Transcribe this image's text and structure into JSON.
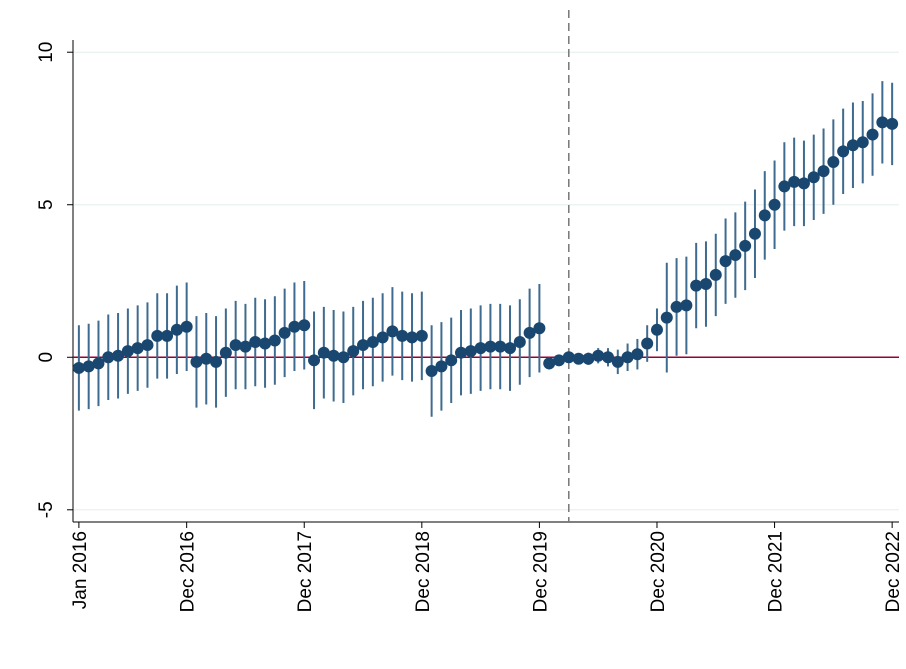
{
  "chart_data": {
    "type": "errorbar",
    "categories": [
      "Jan 2016",
      null,
      null,
      null,
      null,
      null,
      null,
      null,
      null,
      null,
      null,
      "Dec 2016",
      null,
      null,
      null,
      null,
      null,
      null,
      null,
      null,
      null,
      null,
      null,
      "Dec 2017",
      null,
      null,
      null,
      null,
      null,
      null,
      null,
      null,
      null,
      null,
      null,
      "Dec 2018",
      null,
      null,
      null,
      null,
      null,
      null,
      null,
      null,
      null,
      null,
      null,
      "Dec 2019",
      null,
      null,
      null,
      null,
      null,
      null,
      null,
      null,
      null,
      null,
      null,
      "Dec 2020",
      null,
      null,
      null,
      null,
      null,
      null,
      null,
      null,
      null,
      null,
      null,
      "Dec 2021",
      null,
      null,
      null,
      null,
      null,
      null,
      null,
      null,
      null,
      null,
      null,
      "Dec 2022"
    ],
    "series": [
      {
        "color": "#1a476f",
        "bar_color": "#3e6b8f",
        "values": [
          -0.35,
          -0.3,
          -0.2,
          0,
          0.05,
          0.2,
          0.3,
          0.4,
          0.7,
          0.7,
          0.9,
          1.0,
          -0.15,
          -0.05,
          -0.15,
          0.15,
          0.4,
          0.35,
          0.5,
          0.45,
          0.55,
          0.8,
          1.0,
          1.05,
          -0.1,
          0.15,
          0.05,
          0,
          0.2,
          0.4,
          0.5,
          0.65,
          0.85,
          0.7,
          0.65,
          0.7,
          -0.45,
          -0.3,
          -0.1,
          0.15,
          0.2,
          0.3,
          0.35,
          0.35,
          0.3,
          0.5,
          0.8,
          0.95,
          -0.2,
          -0.1,
          0,
          -0.05,
          -0.05,
          0.05,
          0,
          -0.15,
          0.0,
          0.1,
          0.45,
          0.9,
          1.3,
          1.65,
          1.7,
          2.35,
          2.4,
          2.7,
          3.15,
          3.35,
          3.65,
          4.05,
          4.65,
          5.0,
          5.6,
          5.75,
          5.7,
          5.9,
          6.1,
          6.4,
          6.75,
          6.95,
          7.05,
          7.3,
          7.7,
          7.65
        ],
        "errors": [
          1.4,
          1.4,
          1.4,
          1.4,
          1.4,
          1.4,
          1.4,
          1.4,
          1.4,
          1.4,
          1.45,
          1.45,
          1.5,
          1.5,
          1.5,
          1.45,
          1.45,
          1.4,
          1.45,
          1.45,
          1.45,
          1.45,
          1.45,
          1.45,
          1.6,
          1.5,
          1.5,
          1.5,
          1.45,
          1.45,
          1.45,
          1.45,
          1.45,
          1.45,
          1.45,
          1.45,
          1.5,
          1.45,
          1.4,
          1.4,
          1.4,
          1.4,
          1.4,
          1.4,
          1.4,
          1.4,
          1.45,
          1.45,
          0.2,
          0.15,
          0,
          0.15,
          0.2,
          0.25,
          0.3,
          0.4,
          0.45,
          0.5,
          0.6,
          0.7,
          1.8,
          1.6,
          1.6,
          1.4,
          1.4,
          1.35,
          1.4,
          1.4,
          1.45,
          1.45,
          1.45,
          1.45,
          1.45,
          1.45,
          1.4,
          1.4,
          1.4,
          1.4,
          1.4,
          1.4,
          1.35,
          1.35,
          1.35,
          1.35
        ]
      }
    ],
    "xlim": [
      -0.6,
      83.7
    ],
    "ylim": [
      -5.4,
      10.4
    ],
    "yticks": [
      -5,
      0,
      5,
      10
    ],
    "grid": true,
    "reference_line_x": 50,
    "reference_line_y": 0,
    "reference_line_y_color": "#990033"
  }
}
